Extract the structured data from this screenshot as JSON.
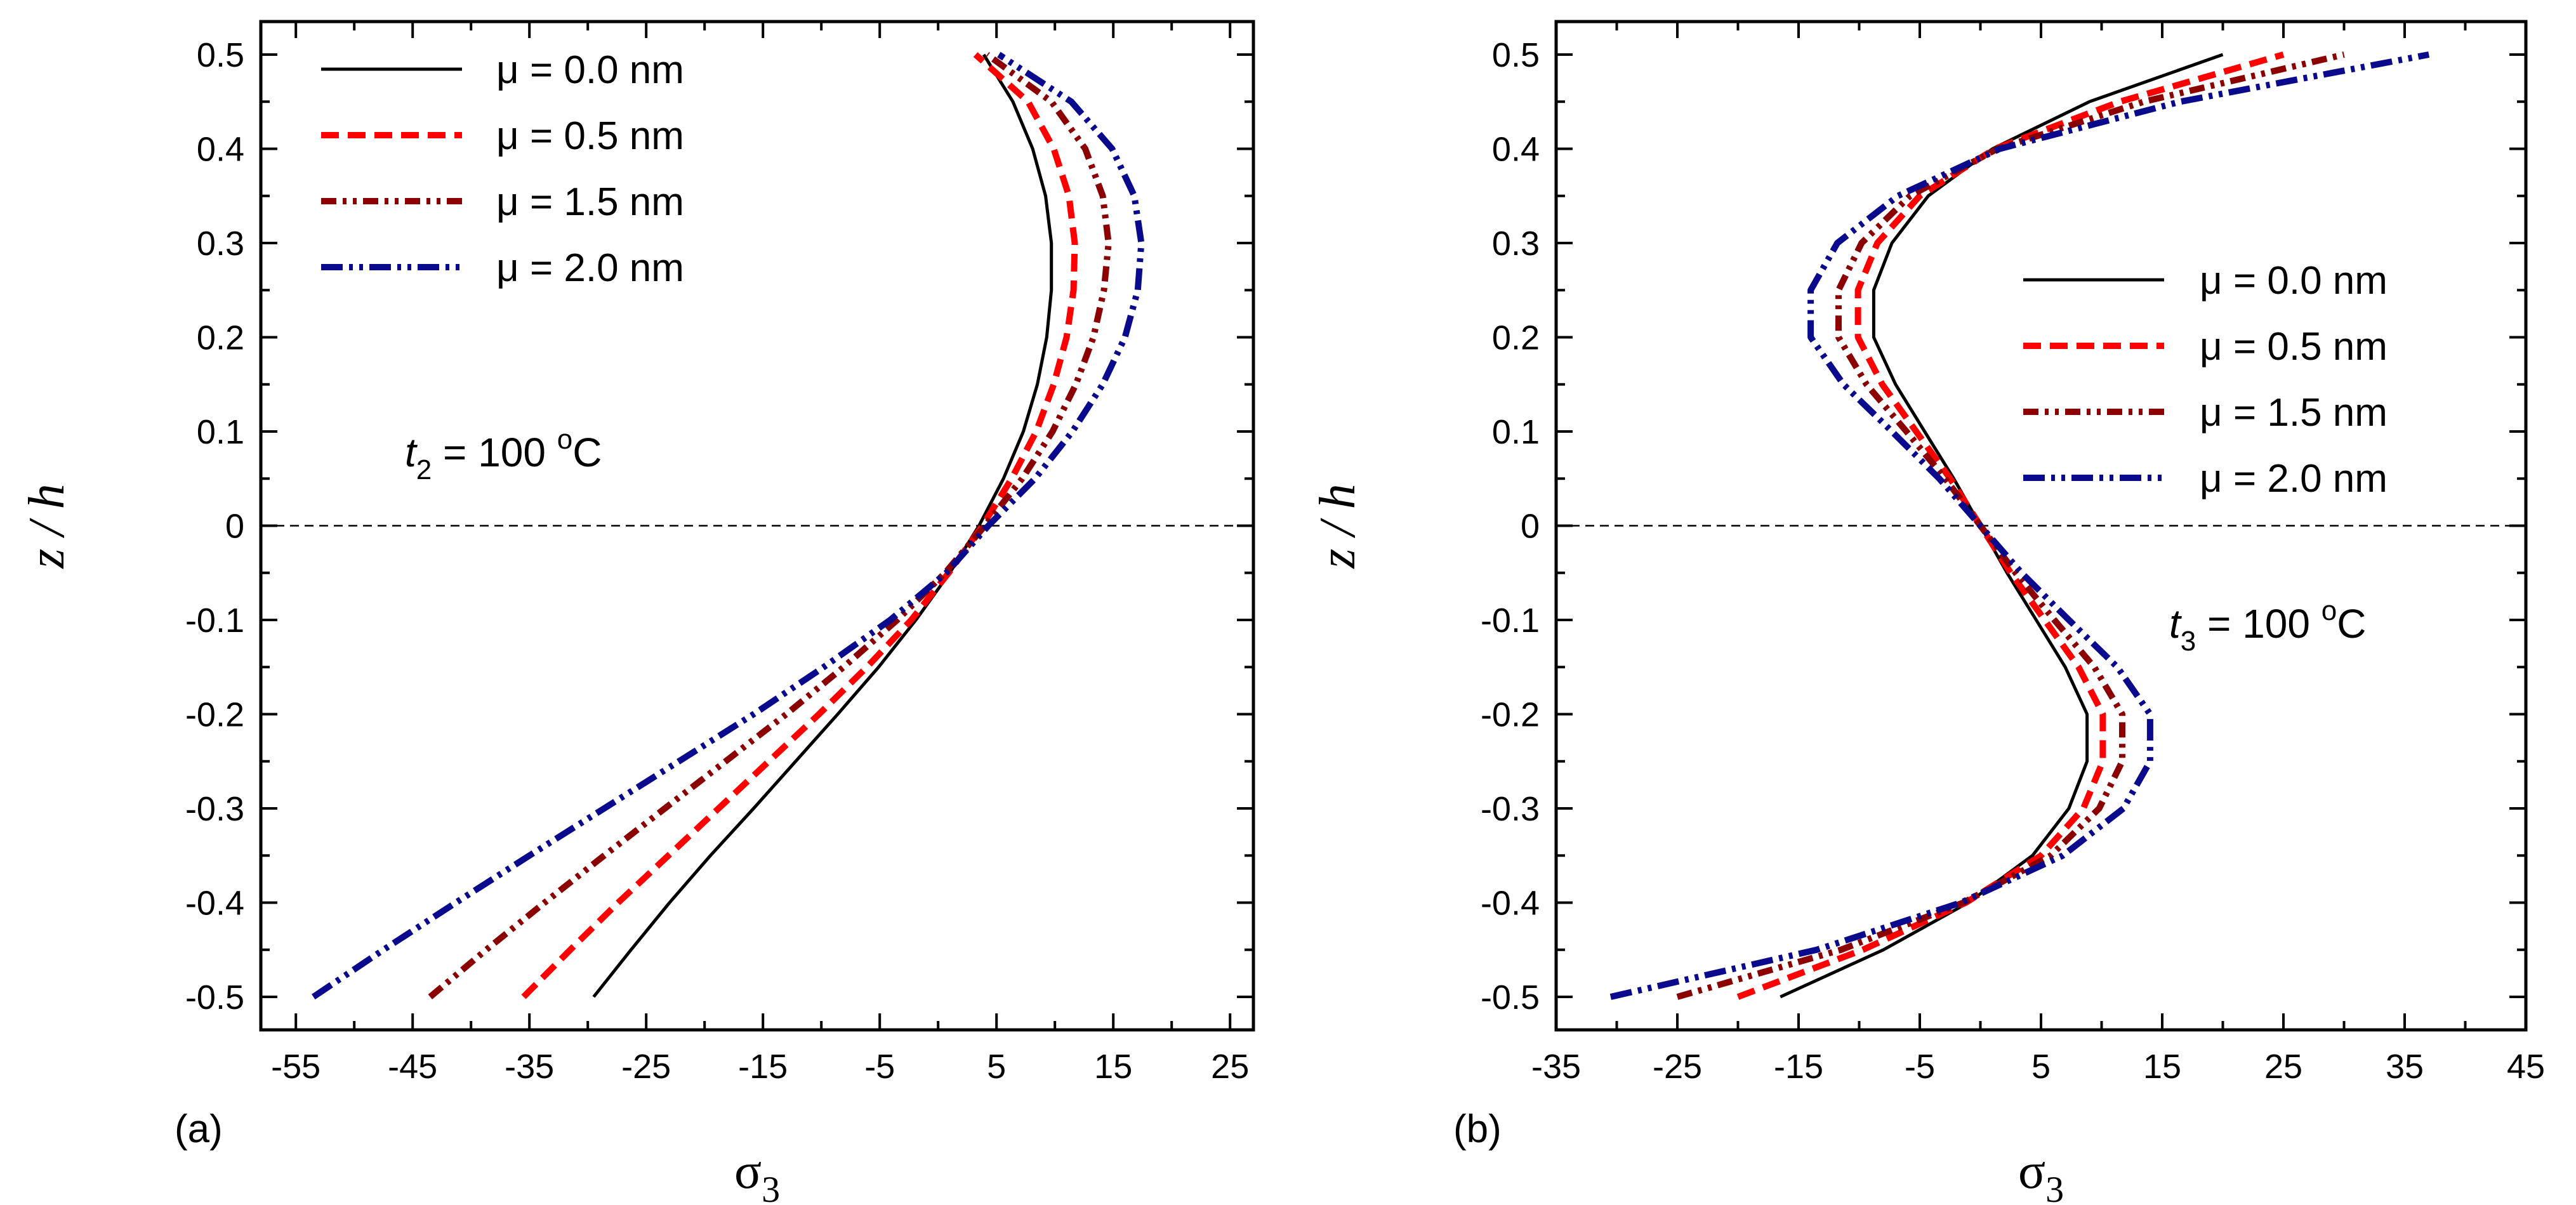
{
  "chart_data": [
    {
      "type": "line",
      "panel_label": "(a)",
      "xlabel": "σ₃",
      "xlabel_base": "σ",
      "xlabel_sub": "3",
      "ylabel": "z / h",
      "xlim": [
        -58,
        27
      ],
      "ylim": [
        -0.535,
        0.535
      ],
      "xticks": [
        -55,
        -45,
        -35,
        -25,
        -15,
        -5,
        5,
        15,
        25
      ],
      "yticks": [
        -0.5,
        -0.4,
        -0.3,
        -0.2,
        -0.1,
        0,
        0.1,
        0.2,
        0.3,
        0.4,
        0.5
      ],
      "ytick_labels": [
        "-0.5",
        "-0.4",
        "-0.3",
        "-0.2",
        "-0.1",
        "0",
        "0.1",
        "0.2",
        "0.3",
        "0.4",
        "0.5"
      ],
      "legend_position": "top-left",
      "annotation": {
        "var": "t",
        "sub": "2",
        "text": " = 100  ",
        "sup": "o",
        "unit": "C"
      },
      "z": [
        -0.5,
        -0.45,
        -0.4,
        -0.35,
        -0.3,
        -0.25,
        -0.2,
        -0.15,
        -0.1,
        -0.05,
        0,
        0.05,
        0.1,
        0.15,
        0.2,
        0.25,
        0.3,
        0.35,
        0.4,
        0.45,
        0.5
      ],
      "series": [
        {
          "name": "μ = 0.0 nm",
          "color": "#000000",
          "style": "solid",
          "values": [
            -29.5,
            -26.3,
            -23.0,
            -19.5,
            -15.8,
            -12.2,
            -8.6,
            -5.1,
            -1.9,
            1.0,
            3.5,
            5.6,
            7.3,
            8.5,
            9.3,
            9.7,
            9.7,
            9.2,
            8.1,
            6.4,
            3.9
          ]
        },
        {
          "name": "μ = 0.5 nm",
          "color": "#ff0000",
          "style": "dash",
          "values": [
            -35.5,
            -31.5,
            -27.4,
            -23.1,
            -18.8,
            -14.5,
            -10.2,
            -6.1,
            -2.3,
            0.9,
            3.8,
            6.3,
            8.4,
            9.9,
            11.0,
            11.6,
            11.7,
            11.2,
            9.9,
            7.7,
            3.2
          ]
        },
        {
          "name": "μ = 1.5 nm",
          "color": "#8b0000",
          "style": "dashdotdot",
          "values": [
            -43.5,
            -38.7,
            -33.7,
            -28.6,
            -23.4,
            -18.2,
            -13.0,
            -8.1,
            -3.5,
            0.6,
            4.0,
            7.2,
            9.8,
            11.8,
            13.3,
            14.2,
            14.6,
            14.1,
            12.6,
            9.7,
            4.2
          ]
        },
        {
          "name": "μ = 2.0 nm",
          "color": "#0a0a8c",
          "style": "dashdotdotlong",
          "values": [
            -53.5,
            -47.5,
            -41.3,
            -35.0,
            -28.6,
            -22.2,
            -15.8,
            -9.8,
            -4.1,
            0.7,
            4.3,
            8.3,
            11.5,
            14.1,
            16.0,
            17.1,
            17.4,
            16.8,
            14.9,
            11.4,
            5.2
          ]
        }
      ]
    },
    {
      "type": "line",
      "panel_label": "(b)",
      "xlabel": "σ₃",
      "xlabel_base": "σ",
      "xlabel_sub": "3",
      "ylabel": "z / h",
      "xlim": [
        -35,
        45
      ],
      "ylim": [
        -0.535,
        0.535
      ],
      "xticks": [
        -35,
        -25,
        -15,
        -5,
        5,
        15,
        25,
        35,
        45
      ],
      "yticks": [
        -0.5,
        -0.4,
        -0.3,
        -0.2,
        -0.1,
        0,
        0.1,
        0.2,
        0.3,
        0.4,
        0.5
      ],
      "ytick_labels": [
        "-0.5",
        "-0.4",
        "-0.3",
        "-0.2",
        "-0.1",
        "0",
        "0.1",
        "0.2",
        "0.3",
        "0.4",
        "0.5"
      ],
      "legend_position": "center-right",
      "annotation": {
        "var": "t",
        "sub": "3",
        "text": " = 100  ",
        "sup": "o",
        "unit": "C"
      },
      "z": [
        -0.5,
        -0.45,
        -0.4,
        -0.35,
        -0.3,
        -0.25,
        -0.2,
        -0.15,
        -0.1,
        -0.05,
        0,
        0.05,
        0.1,
        0.15,
        0.2,
        0.25,
        0.3,
        0.35,
        0.4,
        0.45,
        0.5
      ],
      "series": [
        {
          "name": "μ = 0.0 nm",
          "color": "#000000",
          "style": "solid",
          "values": [
            -16.5,
            -8.0,
            -1.0,
            4.3,
            7.3,
            8.8,
            8.8,
            7.0,
            4.6,
            2.2,
            0.0,
            -2.2,
            -4.6,
            -7.0,
            -8.8,
            -8.8,
            -7.3,
            -4.3,
            1.0,
            9.0,
            20.0
          ]
        },
        {
          "name": "μ = 0.5 nm",
          "color": "#ff0000",
          "style": "dash",
          "values": [
            -20.0,
            -9.7,
            -1.2,
            5.0,
            8.5,
            10.1,
            10.1,
            8.1,
            5.3,
            2.5,
            0.0,
            -2.5,
            -5.3,
            -8.1,
            -10.1,
            -10.1,
            -8.5,
            -5.0,
            1.2,
            11.5,
            25.0
          ]
        },
        {
          "name": "μ = 1.5 nm",
          "color": "#8b0000",
          "style": "dashdotdot",
          "values": [
            -25.0,
            -11.5,
            -1.4,
            5.8,
            9.8,
            11.7,
            11.7,
            9.4,
            6.1,
            2.9,
            0.0,
            -2.9,
            -6.1,
            -9.4,
            -11.7,
            -11.7,
            -9.8,
            -5.8,
            1.4,
            13.5,
            30.0
          ]
        },
        {
          "name": "μ = 2.0 nm",
          "color": "#0a0a8c",
          "style": "dashdotdotlong",
          "values": [
            -30.5,
            -13.5,
            -1.6,
            6.8,
            11.8,
            14.0,
            14.0,
            11.3,
            7.3,
            3.4,
            0.0,
            -3.4,
            -7.3,
            -11.3,
            -14.0,
            -14.0,
            -11.8,
            -6.8,
            1.6,
            16.5,
            37.0
          ]
        }
      ]
    }
  ]
}
